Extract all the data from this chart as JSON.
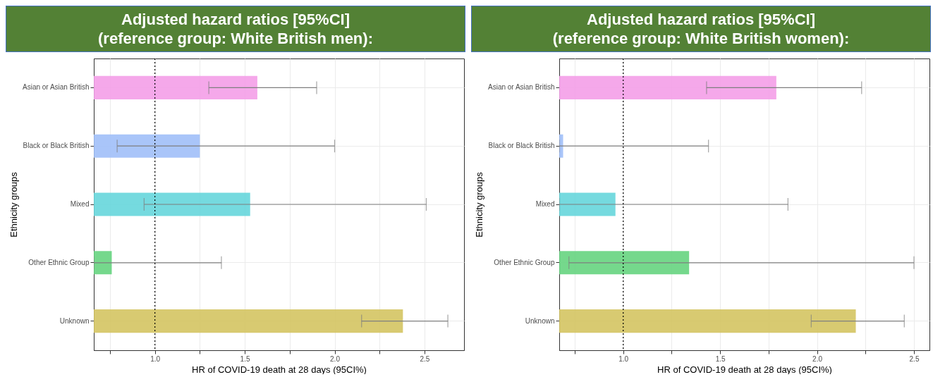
{
  "chart_data": [
    {
      "type": "bar",
      "orientation": "horizontal",
      "title": "Adjusted hazard ratios [95%CI]\n(reference group: White British men):",
      "xlabel": "HR of COVID-19 death at 28 days (95CI%)",
      "ylabel": "Ethnicity groups",
      "categories": [
        "Asian or Asian British",
        "Black or Black British",
        "Mixed",
        "Other Ethnic Group",
        "Unknown"
      ],
      "values": [
        1.57,
        1.25,
        1.53,
        0.76,
        2.38
      ],
      "errors": [
        [
          1.3,
          1.9
        ],
        [
          0.79,
          2.0
        ],
        [
          0.94,
          2.51
        ],
        [
          0.66,
          1.37
        ],
        [
          2.15,
          2.63
        ]
      ],
      "colors": [
        "#f49ee8",
        "#a0bff8",
        "#66d6dc",
        "#66d480",
        "#d4c462"
      ],
      "xlim": [
        0.66,
        2.72
      ],
      "xticks": [
        {
          "value": 0.75,
          "label": null
        },
        {
          "value": 1,
          "label": "1.0"
        },
        {
          "value": 1.25,
          "label": null
        },
        {
          "value": 1.5,
          "label": "1.5"
        },
        {
          "value": 1.75,
          "label": null
        },
        {
          "value": 2,
          "label": "2.0"
        },
        {
          "value": 2.25,
          "label": null
        },
        {
          "value": 2.5,
          "label": "2.5"
        }
      ],
      "ref_lines": [
        {
          "axis": "x",
          "value": 1,
          "color": "#000000",
          "line_style": "dotted"
        }
      ],
      "grid": true
    },
    {
      "type": "bar",
      "orientation": "horizontal",
      "title": "Adjusted hazard ratios [95%CI]\n(reference group: White British women):",
      "xlabel": "HR of COVID-19 death at 28 days (95CI%)",
      "ylabel": "Ethnicity groups",
      "categories": [
        "Asian or Asian British",
        "Black or Black British",
        "Mixed",
        "Other Ethnic Group",
        "Unknown"
      ],
      "values": [
        1.79,
        0.69,
        0.96,
        1.34,
        2.2
      ],
      "errors": [
        [
          1.43,
          2.23
        ],
        [
          0.67,
          1.44
        ],
        [
          0.67,
          1.85
        ],
        [
          0.72,
          2.5
        ],
        [
          1.97,
          2.45
        ]
      ],
      "colors": [
        "#f49ee8",
        "#a0bff8",
        "#66d6dc",
        "#66d480",
        "#d4c462"
      ],
      "xlim": [
        0.67,
        2.58
      ],
      "xticks": [
        {
          "value": 0.75,
          "label": null
        },
        {
          "value": 1,
          "label": "1.0"
        },
        {
          "value": 1.25,
          "label": null
        },
        {
          "value": 1.5,
          "label": "1.5"
        },
        {
          "value": 1.75,
          "label": null
        },
        {
          "value": 2,
          "label": "2.0"
        },
        {
          "value": 2.25,
          "label": null
        },
        {
          "value": 2.5,
          "label": "2.5"
        }
      ],
      "ref_lines": [
        {
          "axis": "x",
          "value": 1,
          "color": "#000000",
          "line_style": "dotted"
        }
      ],
      "grid": true
    }
  ]
}
